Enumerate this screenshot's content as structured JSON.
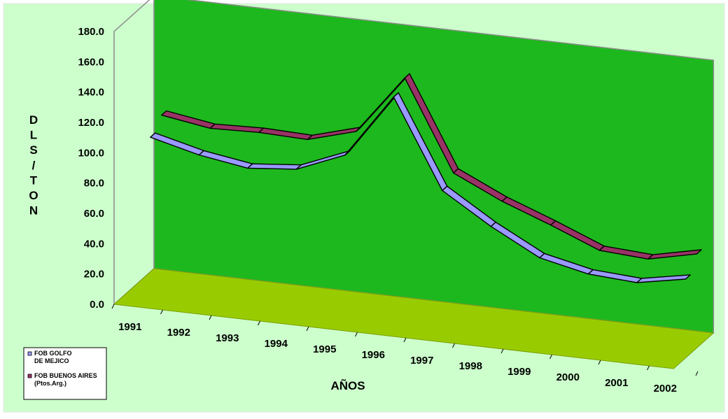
{
  "chart_data": {
    "type": "line",
    "view": "3d",
    "categories": [
      "1991",
      "1992",
      "1993",
      "1994",
      "1995",
      "1996",
      "1997",
      "1998",
      "1999",
      "2000",
      "2001",
      "2002"
    ],
    "series": [
      {
        "name": "FOB GOLFO DE MEJICO",
        "values": [
          105,
          97,
          92,
          95,
          108,
          150,
          92,
          72,
          55,
          48,
          46,
          52
        ]
      },
      {
        "name": "FOB BUENOS AIRES (Ptos.Arg.)",
        "values": [
          113,
          108,
          109,
          108,
          117,
          156,
          97,
          82,
          70,
          57,
          55,
          62
        ]
      }
    ],
    "y_ticks": [
      "0.0",
      "20.0",
      "40.0",
      "60.0",
      "80.0",
      "100.0",
      "120.0",
      "140.0",
      "160.0",
      "180.0"
    ],
    "ylim": [
      0,
      180
    ],
    "ylabel": "DLS/TON",
    "xlabel": "AÑOS",
    "legend_position": "bottom-left",
    "colors": {
      "outer_background": "#ccffcc",
      "back_wall": "#1db81d",
      "floor": "#99cc00",
      "series_1": "#9999ff",
      "series_2": "#993366",
      "outline": "#000000"
    }
  }
}
